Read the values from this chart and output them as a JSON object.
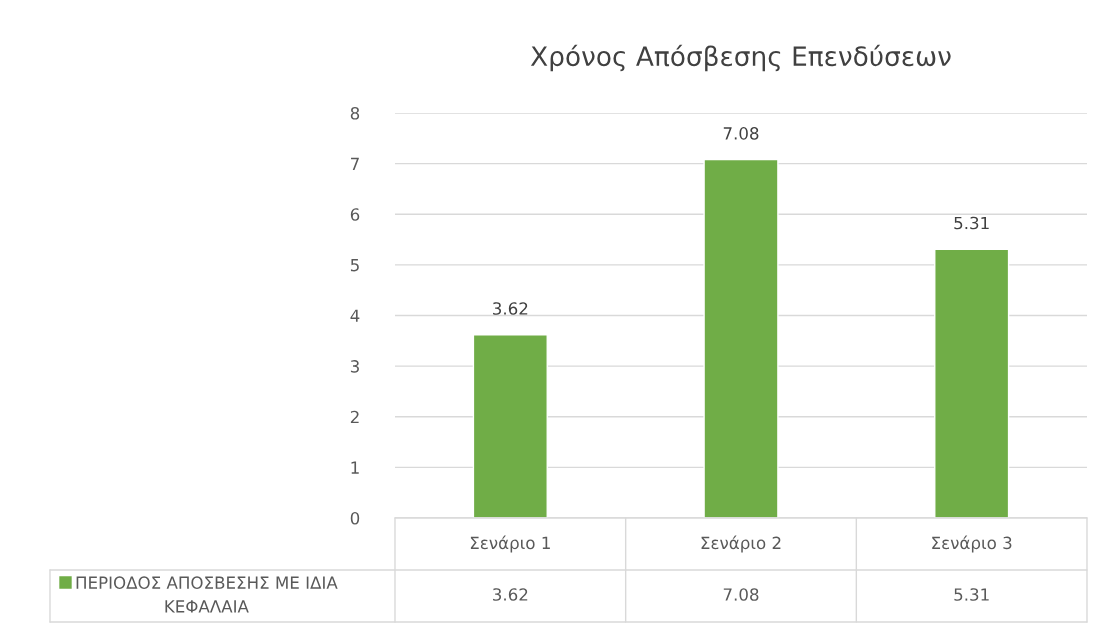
{
  "chart_data": {
    "type": "bar",
    "title": "Χρόνος Απόσβεσης Επενδύσεων",
    "categories": [
      "Σενάριο 1",
      "Σενάριο 2",
      "Σενάριο 3"
    ],
    "series": [
      {
        "name": "ΠΕΡΙΟΔΟΣ ΑΠΟΣΒΕΣΗΣ ΜΕ ΙΔΙΑ ΚΕΦΑΛΑΙΑ",
        "color": "#70ad47",
        "values": [
          3.62,
          7.08,
          5.31
        ],
        "value_labels": [
          "3.62",
          "7.08",
          "5.31"
        ]
      }
    ],
    "ylim": [
      0,
      8
    ],
    "yticks": [
      0,
      1,
      2,
      3,
      4,
      5,
      6,
      7,
      8
    ],
    "annotations": [
      "3.62",
      "7.08",
      "5.31"
    ],
    "grid": "y",
    "data_labels": true,
    "legend": "bottom"
  }
}
